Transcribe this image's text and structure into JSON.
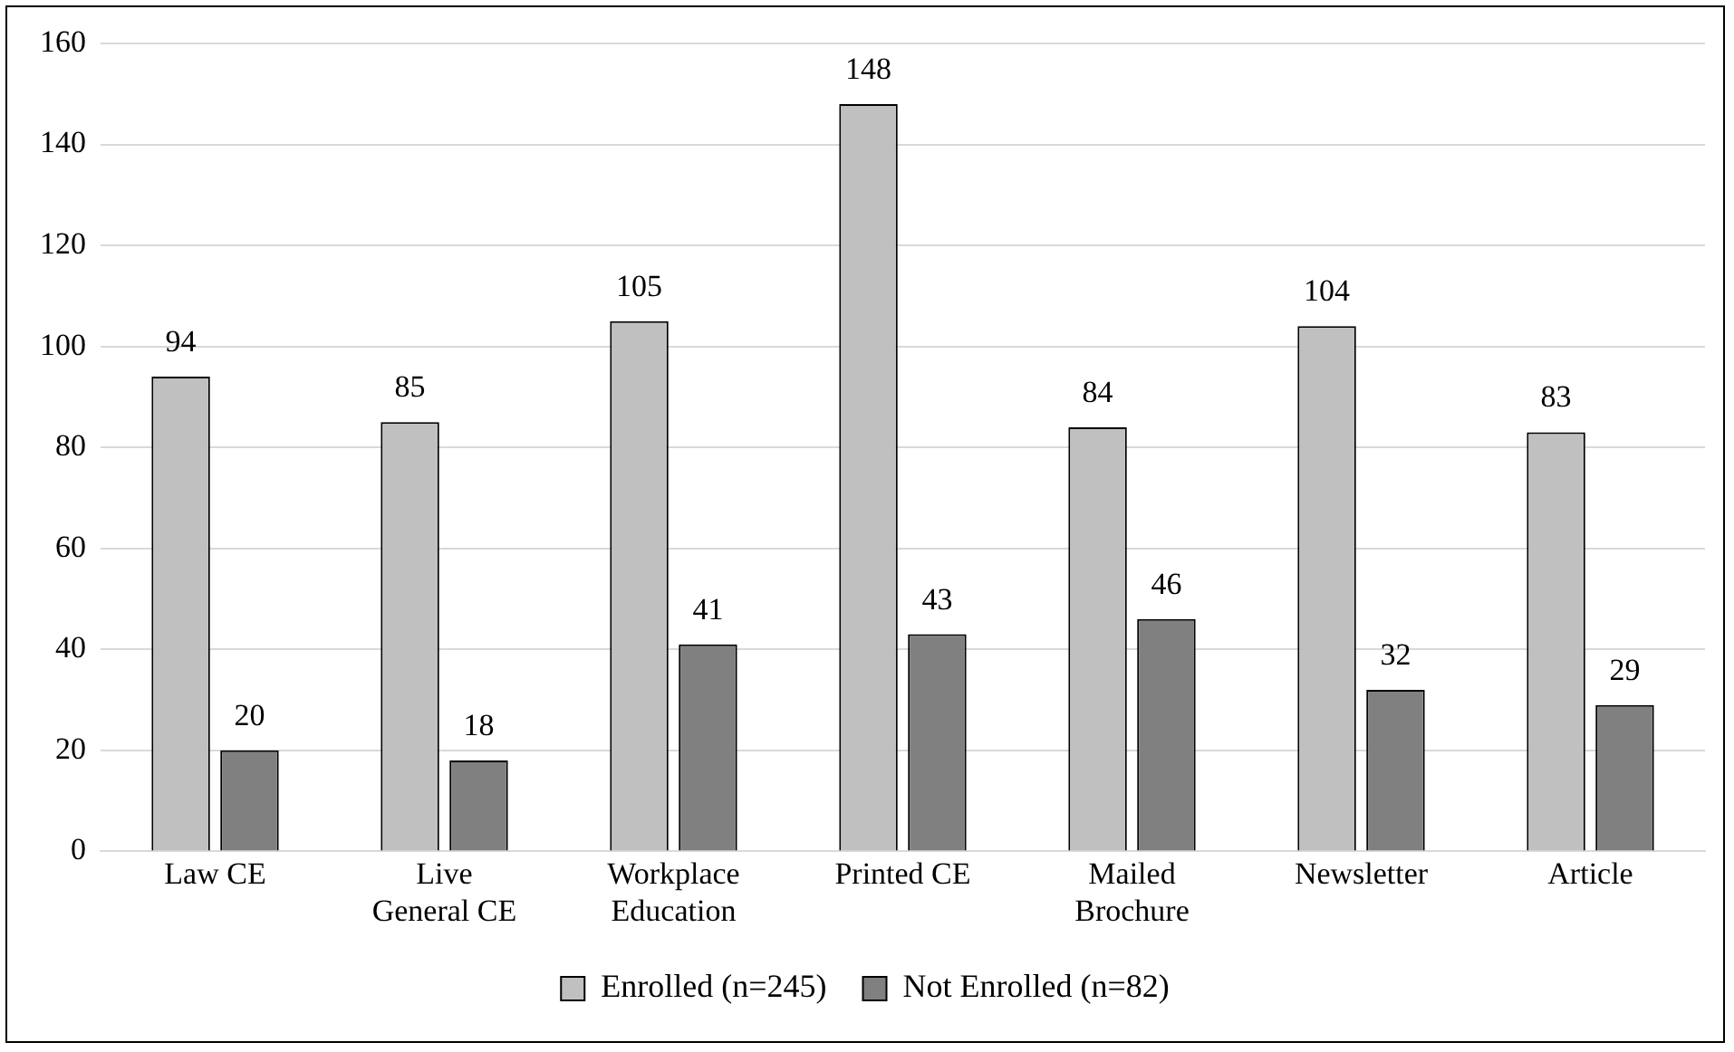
{
  "chart_data": {
    "type": "bar",
    "categories": [
      "Law CE",
      "Live General CE",
      "Workplace Education",
      "Printed CE",
      "Mailed Brochure",
      "Newsletter",
      "Article"
    ],
    "series": [
      {
        "name": "Enrolled (n=245)",
        "color": "#c0c0c0",
        "values": [
          94,
          85,
          105,
          148,
          84,
          104,
          83
        ]
      },
      {
        "name": "Not Enrolled (n=82)",
        "color": "#808080",
        "values": [
          20,
          18,
          41,
          43,
          46,
          32,
          29
        ]
      }
    ],
    "ylim": [
      0,
      160
    ],
    "yticks": [
      0,
      20,
      40,
      60,
      80,
      100,
      120,
      140,
      160
    ],
    "grid": "y",
    "legend": "bottom",
    "data_labels": true
  }
}
